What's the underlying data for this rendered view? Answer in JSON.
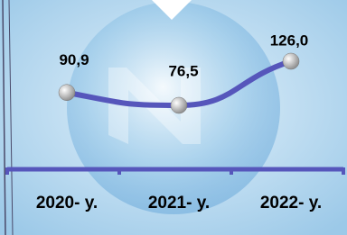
{
  "chart_data": {
    "type": "line",
    "categories": [
      "2020- y.",
      "2021- y.",
      "2022- y."
    ],
    "series": [
      {
        "name": null,
        "color": "#5656bb",
        "values": [
          90.9,
          76.5,
          126.0
        ],
        "value_labels": [
          "90,9",
          "76,5",
          "126,0"
        ]
      }
    ]
  }
}
